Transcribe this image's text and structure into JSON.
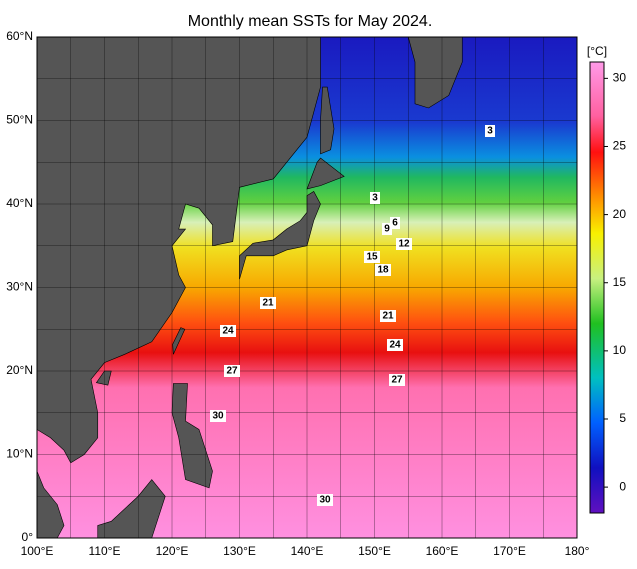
{
  "map": {
    "title": "Monthly mean SSTs for May 2024.",
    "lon_labels": [
      "100°E",
      "110°E",
      "120°E",
      "130°E",
      "140°E",
      "150°E",
      "160°E",
      "170°E",
      "180°"
    ],
    "lat_labels": [
      "0°",
      "10°N",
      "20°N",
      "30°N",
      "40°N",
      "50°N",
      "60°N"
    ],
    "colorbar": {
      "unit": "[°C]",
      "ticks": [
        0,
        5,
        10,
        15,
        20,
        25,
        30
      ]
    },
    "contour_labels": [
      "3",
      "3",
      "6",
      "9",
      "12",
      "15",
      "18",
      "21",
      "21",
      "24",
      "24",
      "27",
      "27",
      "30",
      "30"
    ]
  }
}
